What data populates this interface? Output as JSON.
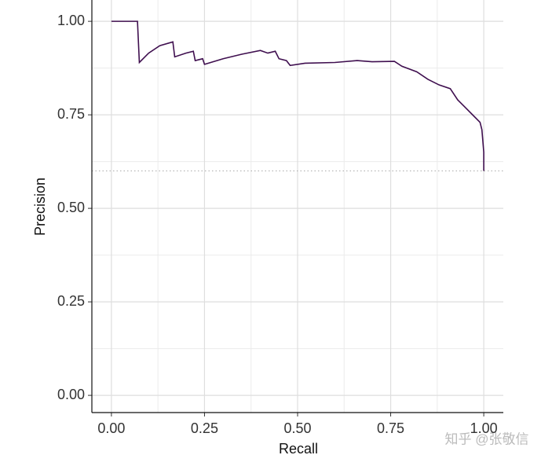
{
  "chart_data": {
    "type": "line",
    "x_label": "Recall",
    "y_label": "Precision",
    "x": [
      0,
      0.07,
      0.075,
      0.1,
      0.13,
      0.165,
      0.17,
      0.2,
      0.22,
      0.225,
      0.245,
      0.25,
      0.3,
      0.35,
      0.4,
      0.42,
      0.44,
      0.45,
      0.47,
      0.48,
      0.52,
      0.6,
      0.66,
      0.7,
      0.76,
      0.78,
      0.82,
      0.85,
      0.88,
      0.91,
      0.93,
      0.95,
      0.97,
      0.99,
      0.995,
      1.0,
      1.0
    ],
    "series": [
      {
        "color": "#3f0f4f",
        "values": [
          1.0,
          1.0,
          0.89,
          0.915,
          0.935,
          0.945,
          0.905,
          0.915,
          0.92,
          0.895,
          0.9,
          0.885,
          0.9,
          0.912,
          0.922,
          0.915,
          0.92,
          0.9,
          0.895,
          0.882,
          0.888,
          0.89,
          0.895,
          0.892,
          0.893,
          0.88,
          0.865,
          0.845,
          0.83,
          0.82,
          0.79,
          0.77,
          0.75,
          0.73,
          0.71,
          0.65,
          0.6
        ]
      }
    ],
    "baseline": 0.6,
    "xlim": [
      -0.0525,
      1.0525
    ],
    "ylim": [
      -0.046,
      1.057
    ],
    "xticks": [
      {
        "value": 0,
        "label": "0.00"
      },
      {
        "value": 0.25,
        "label": "0.25"
      },
      {
        "value": 0.5,
        "label": "0.50"
      },
      {
        "value": 0.75,
        "label": "0.75"
      },
      {
        "value": 1,
        "label": "1.00"
      }
    ],
    "yticks": [
      {
        "value": 0,
        "label": "0.00"
      },
      {
        "value": 0.25,
        "label": "0.25"
      },
      {
        "value": 0.5,
        "label": "0.50"
      },
      {
        "value": 0.75,
        "label": "0.75"
      },
      {
        "value": 1,
        "label": "1.00"
      }
    ],
    "minor_ticks": [
      0.125,
      0.375,
      0.625,
      0.875
    ],
    "grid": true
  },
  "watermark": "知乎 @张敬信"
}
